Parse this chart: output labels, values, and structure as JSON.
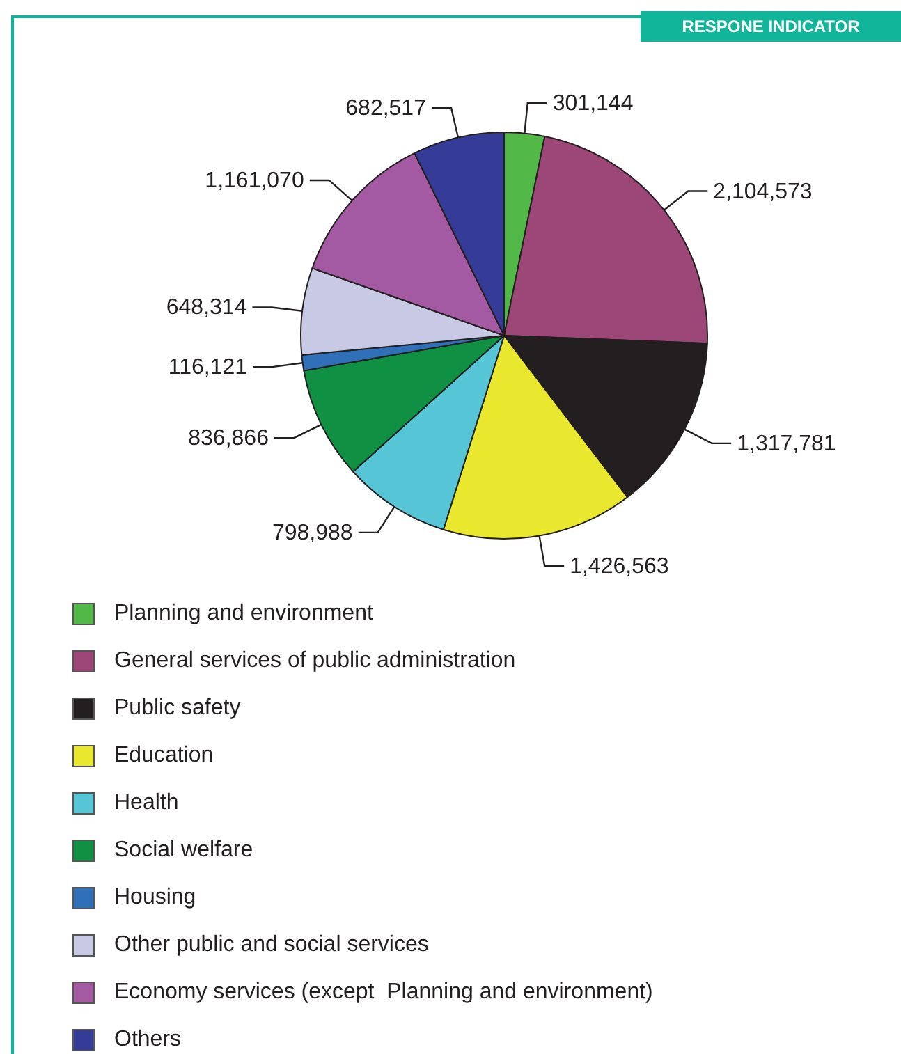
{
  "chart_data": {
    "type": "pie",
    "title": "RESPONE INDICATOR",
    "categories": [
      "Planning and environment",
      "General services of public administration",
      "Public safety",
      "Education",
      "Health",
      "Social welfare",
      "Housing",
      "Other public and social services",
      "Economy services (except  Planning and environment)",
      "Others"
    ],
    "values": [
      301144,
      2104573,
      1317781,
      1426563,
      798988,
      836866,
      116121,
      648314,
      1161070,
      682517
    ],
    "colors": [
      "#52b848",
      "#9d4778",
      "#231f20",
      "#e9e82f",
      "#56c5d6",
      "#109043",
      "#3070b8",
      "#c7c9e5",
      "#a45aa2",
      "#353c98"
    ],
    "value_labels": [
      "301,144",
      "2,104,573",
      "1,317,781",
      "1,426,563",
      "798,988",
      "836,866",
      "116,121",
      "648,314",
      "1,161,070",
      "682,517"
    ],
    "legend": "bottom"
  }
}
